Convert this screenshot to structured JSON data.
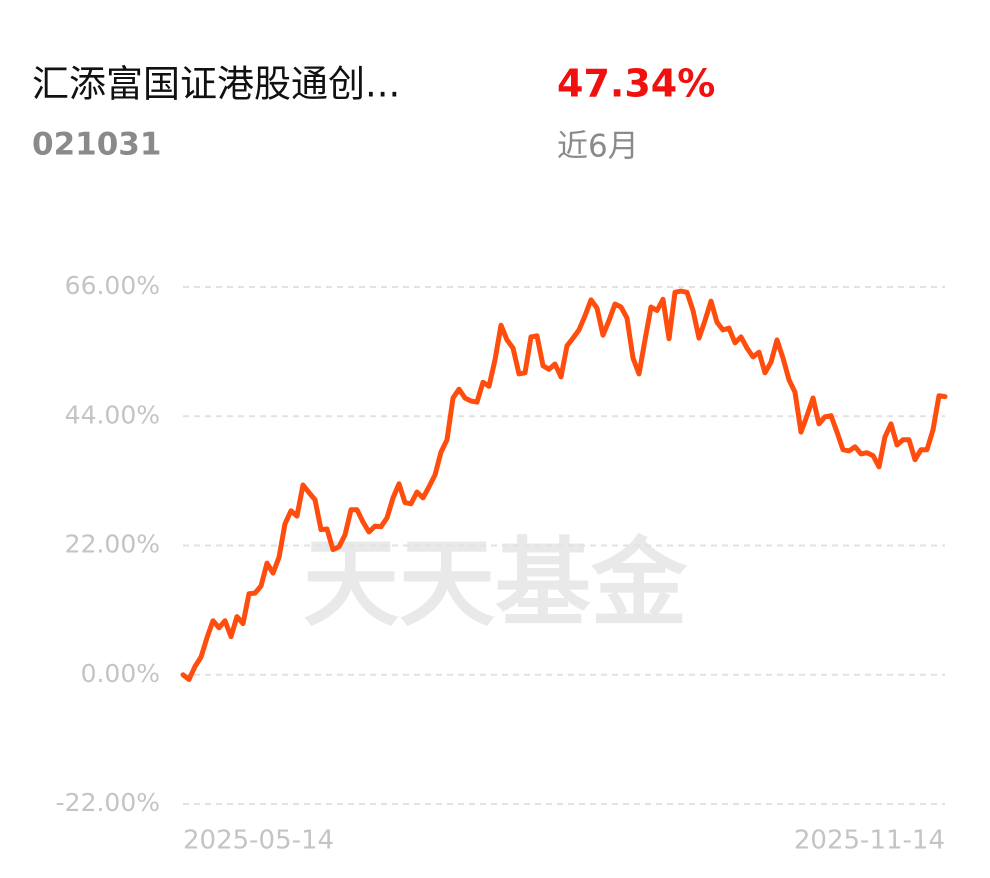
{
  "header": {
    "title": "汇添富国证港股通创...",
    "code": "021031",
    "return_value": "47.34%",
    "period": "近6月"
  },
  "chart_data": {
    "type": "line",
    "watermark": "天天基金",
    "color": "#ff4d0d",
    "grid": true,
    "ylim": [
      -22,
      66
    ],
    "yticks": [
      {
        "value": -22,
        "label": "-22.00%"
      },
      {
        "value": 0,
        "label": "0.00%"
      },
      {
        "value": 22,
        "label": "22.00%"
      },
      {
        "value": 44,
        "label": "44.00%"
      },
      {
        "value": 66,
        "label": "66.00%"
      }
    ],
    "categories": [
      "2025-05-14",
      null,
      null,
      null,
      null,
      null,
      null,
      null,
      null,
      null,
      null,
      null,
      null,
      null,
      null,
      null,
      null,
      null,
      null,
      null,
      null,
      null,
      null,
      null,
      null,
      null,
      null,
      null,
      null,
      null,
      null,
      null,
      null,
      null,
      null,
      null,
      null,
      null,
      null,
      null,
      null,
      null,
      null,
      null,
      null,
      null,
      null,
      null,
      null,
      null,
      null,
      null,
      null,
      null,
      null,
      null,
      null,
      null,
      null,
      null,
      null,
      null,
      null,
      null,
      null,
      null,
      null,
      null,
      null,
      null,
      null,
      null,
      null,
      null,
      null,
      null,
      null,
      null,
      null,
      null,
      null,
      null,
      null,
      null,
      null,
      null,
      null,
      null,
      null,
      null,
      null,
      null,
      null,
      null,
      null,
      null,
      null,
      null,
      null,
      null,
      null,
      null,
      null,
      null,
      null,
      null,
      null,
      null,
      null,
      null,
      null,
      null,
      null,
      null,
      null,
      null,
      null,
      null,
      null,
      null,
      null,
      null,
      null,
      null,
      null,
      null,
      null,
      "2025-11-14"
    ],
    "values": [
      0,
      -0.8,
      1.4,
      3,
      6.3,
      9.2,
      8,
      9.2,
      6.5,
      9.9,
      8.7,
      13.8,
      13.9,
      15.1,
      19,
      17.3,
      20,
      25.7,
      27.9,
      27,
      32.3,
      31,
      29.8,
      24.7,
      24.8,
      21.3,
      21.8,
      23.8,
      28.1,
      28.1,
      26,
      24.3,
      25.3,
      25.2,
      26.7,
      30.1,
      32.5,
      29.3,
      29.1,
      31.1,
      30.1,
      32,
      34,
      37.9,
      40,
      47.1,
      48.6,
      47.1,
      46.6,
      46.4,
      49.8,
      49.1,
      53.6,
      59.5,
      57,
      55.6,
      51.2,
      51.4,
      57.5,
      57.7,
      52.6,
      52,
      52.9,
      50.7,
      56,
      57.3,
      58.7,
      61.1,
      63.8,
      62.4,
      57.8,
      60.3,
      63.1,
      62.6,
      60.7,
      53.9,
      51.2,
      57,
      62.6,
      62,
      63.9,
      57.2,
      65.1,
      65.3,
      65.1,
      62,
      57.3,
      60.3,
      63.6,
      60,
      58.7,
      59,
      56.5,
      57.5,
      55.6,
      54.1,
      54.9,
      51.4,
      53.2,
      57,
      53.9,
      50.2,
      48.1,
      41.3,
      44.1,
      47.1,
      42.7,
      43.9,
      44.1,
      41.3,
      38.3,
      38.1,
      38.8,
      37.6,
      37.8,
      37.3,
      35.4,
      40.5,
      42.7,
      39.1,
      40,
      40,
      36.6,
      38.3,
      38.3,
      41.7,
      47.5,
      47.34
    ]
  }
}
